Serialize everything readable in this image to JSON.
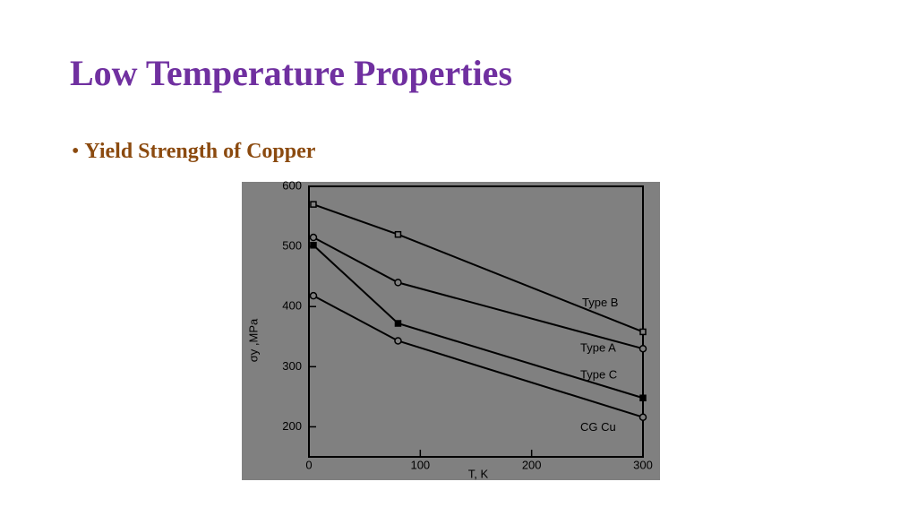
{
  "slide": {
    "title": "Low Temperature Properties",
    "bullet": "Yield Strength of Copper"
  },
  "chart_data": {
    "type": "line",
    "xlabel": "T, K",
    "ylabel": "σy ,MPa",
    "xlim": [
      0,
      300
    ],
    "ylim": [
      150,
      600
    ],
    "xticks": [
      0,
      100,
      200,
      300
    ],
    "yticks": [
      200,
      300,
      400,
      500,
      600
    ],
    "series": [
      {
        "name": "Type B",
        "color": "#000000",
        "marker": "square-open",
        "x": [
          4,
          80,
          300
        ],
        "values": [
          570,
          520,
          358
        ]
      },
      {
        "name": "Type A",
        "color": "#000000",
        "marker": "circle-open",
        "x": [
          4,
          80,
          300
        ],
        "values": [
          515,
          440,
          330
        ]
      },
      {
        "name": "Type C",
        "color": "#000000",
        "marker": "square-filled",
        "x": [
          4,
          80,
          300
        ],
        "values": [
          502,
          372,
          248
        ]
      },
      {
        "name": "CG Cu",
        "color": "#000000",
        "marker": "circle-open",
        "x": [
          4,
          80,
          300
        ],
        "values": [
          418,
          343,
          216
        ]
      }
    ]
  }
}
